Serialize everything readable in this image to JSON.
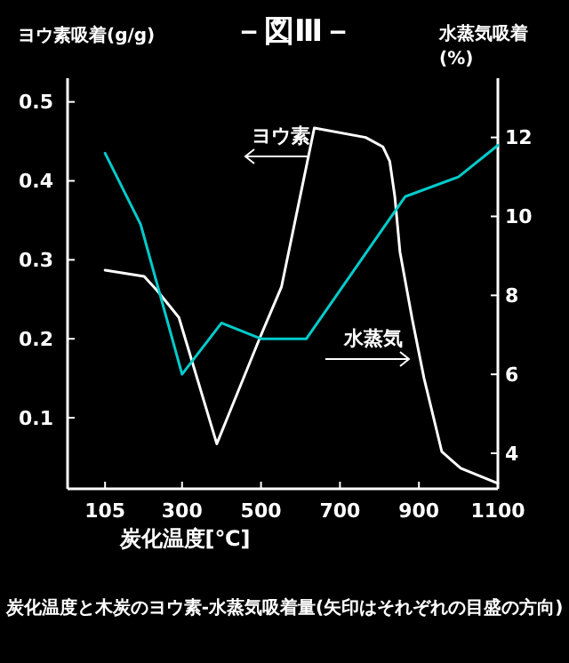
{
  "chart_data": {
    "type": "line",
    "title": "－図Ⅲ－",
    "xlabel": "炭化温度[℃]",
    "ylabel": "ヨウ素吸着(g/g)",
    "y2label": "水蒸気吸着\n(%)",
    "series": [
      {
        "color": "#ffffff",
        "x": [
          105,
          204,
          237,
          292,
          388,
          497,
          552,
          635,
          765,
          809,
          826,
          839,
          852,
          883,
          913,
          958,
          1006,
          1100
        ],
        "values": [
          0.287,
          0.279,
          0.261,
          0.227,
          0.067,
          0.201,
          0.266,
          0.467,
          0.455,
          0.443,
          0.425,
          0.38,
          0.31,
          0.225,
          0.15,
          0.057,
          0.036,
          0.017
        ]
      },
      {
        "color": "#00cccc",
        "axis": "y2",
        "x": [
          105,
          195,
          300,
          400,
          500,
          615,
          865,
          1000,
          1100
        ],
        "values": [
          11.6,
          9.8,
          6.0,
          7.3,
          6.9,
          6.9,
          10.5,
          11.0,
          11.8
        ]
      }
    ],
    "xlim": [
      10,
      1100
    ],
    "xticks": [
      105,
      300,
      500,
      700,
      900,
      1100
    ],
    "ylim": [
      0.01,
      0.53
    ],
    "yticks": [
      0.1,
      0.2,
      0.3,
      0.4,
      0.5
    ],
    "y2lim": [
      3.1,
      13.5
    ],
    "y2ticks": [
      4,
      6,
      8,
      10,
      12
    ],
    "grid": false,
    "marker": "none",
    "line_style": "solid",
    "annotations": [
      "ヨウ素",
      "水蒸気",
      "炭化温度と木炭のヨウ素-水蒸気吸着量(矢印はそれぞれの目盛の方向)"
    ]
  }
}
